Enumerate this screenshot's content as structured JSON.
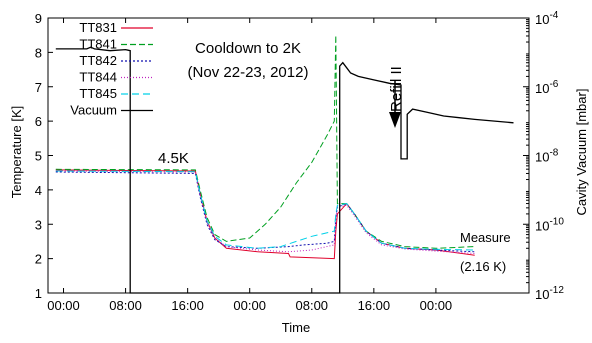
{
  "chart_data": {
    "type": "line",
    "title_lines": [
      "Cooldown to 2K",
      "(Nov 22-23, 2012)"
    ],
    "xlabel": "Time",
    "ylabel": "Temperature [K]",
    "y2label": "Cavity Vacuum [mbar]",
    "xlim": [
      0,
      62
    ],
    "ylim": [
      1,
      9
    ],
    "y2lim_exponent": [
      -12,
      -4
    ],
    "x_ticks": [
      {
        "x": 2,
        "label": "00:00"
      },
      {
        "x": 10,
        "label": "08:00"
      },
      {
        "x": 18,
        "label": "16:00"
      },
      {
        "x": 26,
        "label": "00:00"
      },
      {
        "x": 34,
        "label": "08:00"
      },
      {
        "x": 42,
        "label": "16:00"
      },
      {
        "x": 50,
        "label": "00:00"
      }
    ],
    "y_ticks": [
      1,
      2,
      3,
      4,
      5,
      6,
      7,
      8,
      9
    ],
    "y2_ticks": [
      {
        "exp": -12,
        "base": "10",
        "sup": "-12"
      },
      {
        "exp": -10,
        "base": "10",
        "sup": "-10"
      },
      {
        "exp": -8,
        "base": "10",
        "sup": "-8"
      },
      {
        "exp": -6,
        "base": "10",
        "sup": "-6"
      },
      {
        "exp": -4,
        "base": "10",
        "sup": "-4"
      }
    ],
    "annotations": {
      "level": "4.5K",
      "refill": "Refill II",
      "measure": "Measure",
      "measure_value": "(2.16 K)"
    },
    "series": [
      {
        "name": "TT831",
        "color": "#e0002a",
        "dash": "",
        "points": [
          [
            1,
            4.58
          ],
          [
            19,
            4.55
          ],
          [
            19.6,
            3.9
          ],
          [
            20.5,
            3.1
          ],
          [
            21.5,
            2.6
          ],
          [
            23,
            2.3
          ],
          [
            27,
            2.2
          ],
          [
            31,
            2.15
          ],
          [
            31.2,
            2.05
          ],
          [
            36.9,
            2.0
          ],
          [
            37.1,
            2.8
          ],
          [
            37.3,
            3.3
          ],
          [
            38.5,
            3.6
          ],
          [
            39.5,
            3.3
          ],
          [
            41,
            2.8
          ],
          [
            43,
            2.45
          ],
          [
            46,
            2.3
          ],
          [
            50,
            2.25
          ],
          [
            55,
            2.1
          ]
        ]
      },
      {
        "name": "TT841",
        "color": "#00a020",
        "dash": "6,3",
        "points": [
          [
            1,
            4.6
          ],
          [
            19,
            4.58
          ],
          [
            19.6,
            4.0
          ],
          [
            20.5,
            3.2
          ],
          [
            21.5,
            2.7
          ],
          [
            23,
            2.5
          ],
          [
            26,
            2.6
          ],
          [
            28,
            3.0
          ],
          [
            30,
            3.5
          ],
          [
            32,
            4.2
          ],
          [
            34,
            4.8
          ],
          [
            36,
            5.6
          ],
          [
            36.9,
            6.0
          ],
          [
            37.1,
            8.5
          ],
          [
            37.3,
            3.6
          ],
          [
            38.5,
            3.6
          ],
          [
            39.5,
            3.3
          ],
          [
            41,
            2.8
          ],
          [
            43,
            2.5
          ],
          [
            46,
            2.35
          ],
          [
            50,
            2.3
          ],
          [
            55,
            2.35
          ]
        ]
      },
      {
        "name": "TT842",
        "color": "#1010b0",
        "dash": "2,2",
        "points": [
          [
            1,
            4.52
          ],
          [
            19,
            4.48
          ],
          [
            19.6,
            3.8
          ],
          [
            20.5,
            3.0
          ],
          [
            21.5,
            2.55
          ],
          [
            23,
            2.35
          ],
          [
            27,
            2.3
          ],
          [
            31,
            2.35
          ],
          [
            33,
            2.4
          ],
          [
            36,
            2.45
          ],
          [
            36.9,
            2.5
          ],
          [
            37.1,
            3.2
          ],
          [
            37.3,
            3.5
          ],
          [
            38.5,
            3.6
          ],
          [
            39.5,
            3.3
          ],
          [
            41,
            2.8
          ],
          [
            43,
            2.45
          ],
          [
            46,
            2.3
          ],
          [
            50,
            2.25
          ],
          [
            55,
            2.2
          ]
        ]
      },
      {
        "name": "TT844",
        "color": "#c020c0",
        "dash": "1,2",
        "points": [
          [
            1,
            4.55
          ],
          [
            19,
            4.52
          ],
          [
            19.6,
            3.85
          ],
          [
            20.5,
            3.05
          ],
          [
            21.5,
            2.6
          ],
          [
            23,
            2.35
          ],
          [
            27,
            2.25
          ],
          [
            31,
            2.2
          ],
          [
            34,
            2.25
          ],
          [
            36.9,
            2.4
          ],
          [
            37.1,
            3.1
          ],
          [
            37.3,
            3.5
          ],
          [
            38.5,
            3.55
          ],
          [
            39.5,
            3.25
          ],
          [
            41,
            2.75
          ],
          [
            43,
            2.4
          ],
          [
            46,
            2.28
          ],
          [
            50,
            2.22
          ],
          [
            55,
            2.15
          ]
        ]
      },
      {
        "name": "TT845",
        "color": "#00d0e8",
        "dash": "7,4",
        "points": [
          [
            1,
            4.55
          ],
          [
            19,
            4.53
          ],
          [
            19.6,
            3.9
          ],
          [
            20.5,
            3.1
          ],
          [
            21.5,
            2.65
          ],
          [
            23,
            2.4
          ],
          [
            27,
            2.3
          ],
          [
            30,
            2.35
          ],
          [
            32,
            2.5
          ],
          [
            34,
            2.65
          ],
          [
            36.9,
            2.8
          ],
          [
            37.1,
            3.3
          ],
          [
            37.3,
            3.55
          ],
          [
            38.5,
            3.6
          ],
          [
            39.5,
            3.3
          ],
          [
            41,
            2.8
          ],
          [
            43,
            2.45
          ],
          [
            46,
            2.3
          ],
          [
            50,
            2.27
          ],
          [
            55,
            2.25
          ]
        ]
      },
      {
        "name": "Vacuum",
        "color": "#000000",
        "dash": "",
        "points": [
          [
            1,
            8.1
          ],
          [
            5,
            8.1
          ],
          [
            5.5,
            8.15
          ],
          [
            6,
            8.1
          ],
          [
            8,
            8.05
          ],
          [
            10,
            8.08
          ],
          [
            10.6,
            8.05
          ],
          [
            10.6,
            1.0
          ],
          [
            37.6,
            1.0
          ],
          [
            37.6,
            5.5
          ],
          [
            37.6,
            7.6
          ],
          [
            38,
            7.7
          ],
          [
            38.5,
            7.55
          ],
          [
            39,
            7.4
          ],
          [
            40,
            7.3
          ],
          [
            42,
            7.2
          ],
          [
            44,
            7.1
          ],
          [
            45.5,
            7.05
          ],
          [
            45.5,
            4.9
          ],
          [
            46.3,
            4.9
          ],
          [
            46.3,
            6.2
          ],
          [
            47,
            6.35
          ],
          [
            49,
            6.25
          ],
          [
            51,
            6.15
          ],
          [
            53,
            6.1
          ],
          [
            55,
            6.05
          ],
          [
            60,
            5.95
          ]
        ]
      }
    ]
  }
}
